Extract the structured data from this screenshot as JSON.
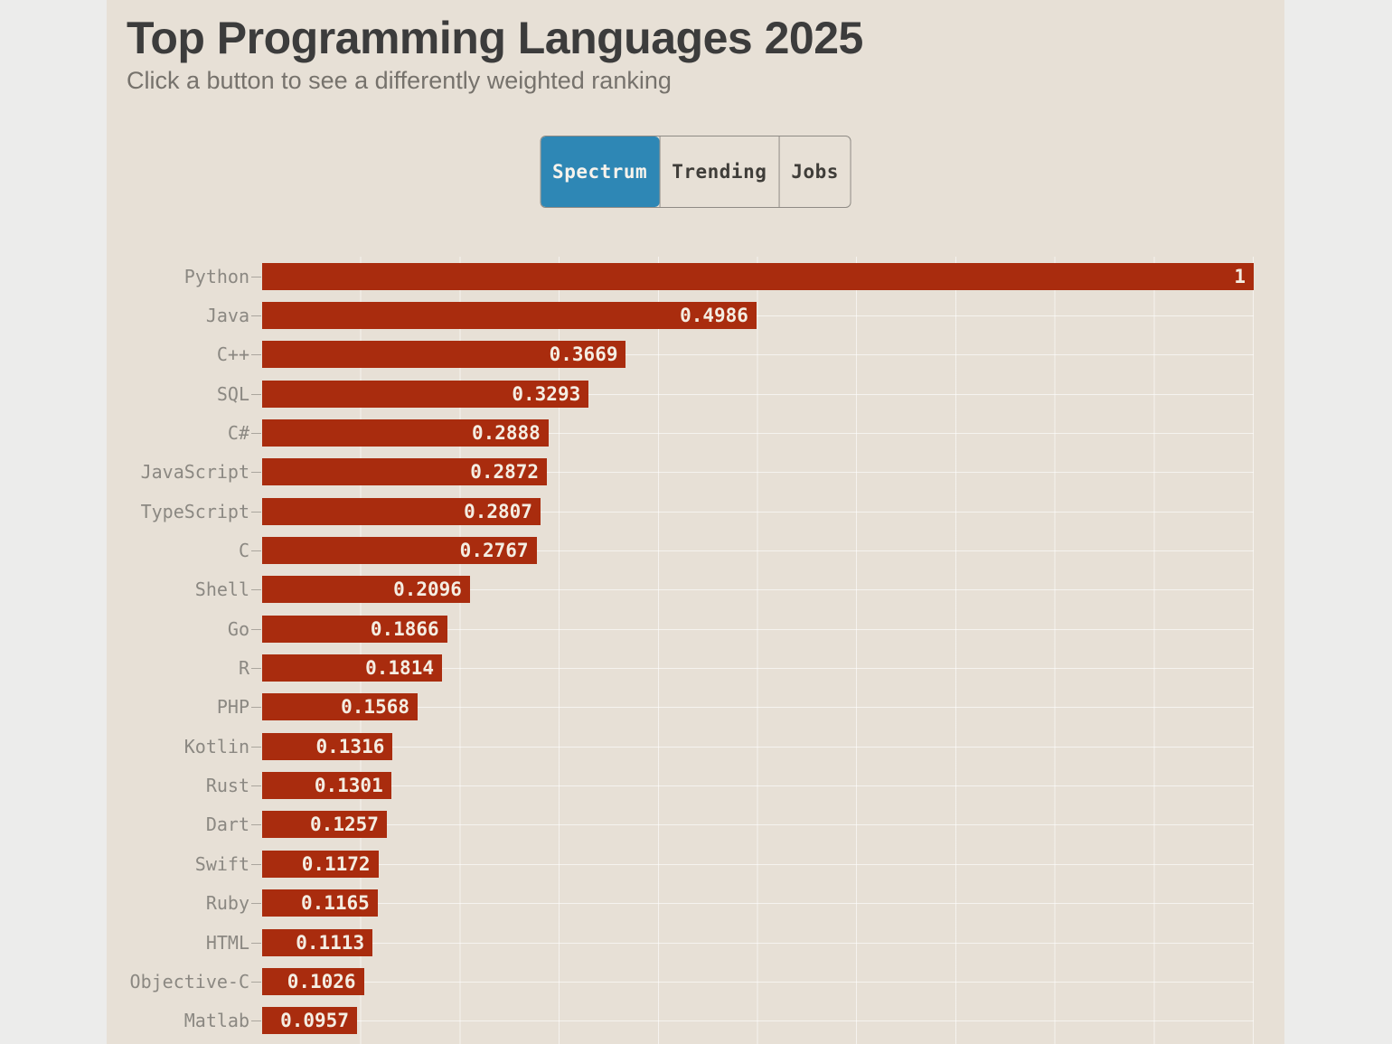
{
  "page": {
    "title": "Top Programming Languages 2025",
    "subtitle": "Click a button to see a differently weighted ranking"
  },
  "tabs": [
    {
      "label": "Spectrum",
      "active": true
    },
    {
      "label": "Trending",
      "active": false
    },
    {
      "label": "Jobs",
      "active": false
    }
  ],
  "colors": {
    "bar": "#a92c0e",
    "active_tab_bg": "#2e87b5",
    "content_bg": "#e7e0d6"
  },
  "chart_data": {
    "type": "bar",
    "orientation": "horizontal",
    "title": "Top Programming Languages 2025",
    "xlabel": "",
    "ylabel": "",
    "xlim": [
      0,
      1
    ],
    "grid": "on",
    "legend": "none",
    "categories": [
      "Python",
      "Java",
      "C++",
      "SQL",
      "C#",
      "JavaScript",
      "TypeScript",
      "C",
      "Shell",
      "Go",
      "R",
      "PHP",
      "Kotlin",
      "Rust",
      "Dart",
      "Swift",
      "Ruby",
      "HTML",
      "Objective-C",
      "Matlab"
    ],
    "values": [
      1,
      0.4986,
      0.3669,
      0.3293,
      0.2888,
      0.2872,
      0.2807,
      0.2767,
      0.2096,
      0.1866,
      0.1814,
      0.1568,
      0.1316,
      0.1301,
      0.1257,
      0.1172,
      0.1165,
      0.1113,
      0.1026,
      0.0957
    ],
    "value_labels": [
      "1",
      "0.4986",
      "0.3669",
      "0.3293",
      "0.2888",
      "0.2872",
      "0.2807",
      "0.2767",
      "0.2096",
      "0.1866",
      "0.1814",
      "0.1568",
      "0.1316",
      "0.1301",
      "0.1257",
      "0.1172",
      "0.1165",
      "0.1113",
      "0.1026",
      "0.0957"
    ]
  }
}
